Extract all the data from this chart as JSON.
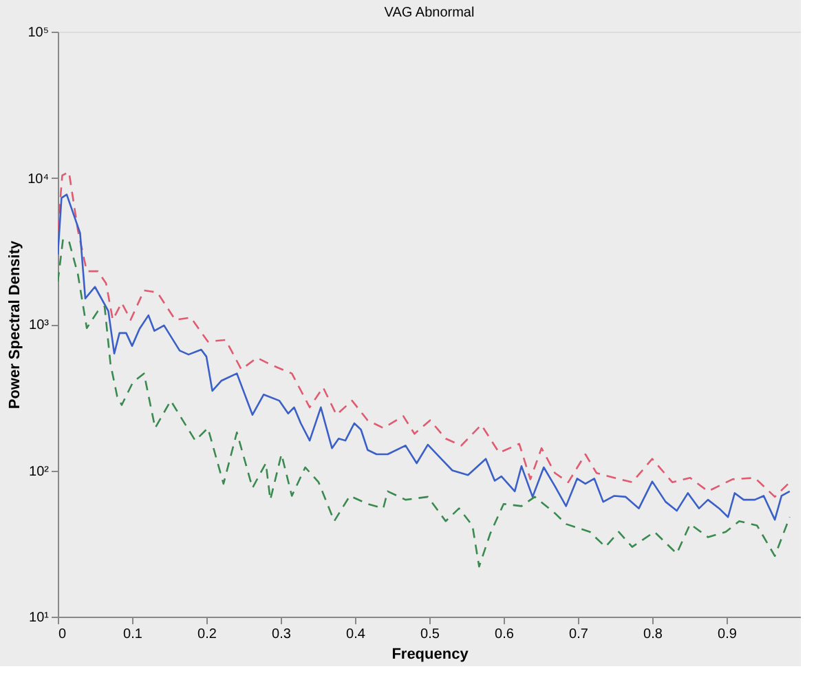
{
  "chart_data": {
    "type": "line",
    "title": "VAG Abnormal",
    "xlabel": "Frequency",
    "ylabel": "Power Spectral Density",
    "log": "y",
    "grid": false,
    "marker": "none",
    "xlim": [
      0,
      1
    ],
    "xticks": [
      0,
      0.1,
      0.2,
      0.3,
      0.4,
      0.5,
      0.6,
      0.7,
      0.8,
      0.9
    ],
    "ylim": [
      10,
      100000
    ],
    "yticks": [
      {
        "value": 10,
        "label": "10¹"
      },
      {
        "value": 100,
        "label": "10²"
      },
      {
        "value": 1000,
        "label": "10³"
      },
      {
        "value": 10000,
        "label": "10⁴"
      },
      {
        "value": 100000,
        "label": "10⁵"
      }
    ],
    "series": [
      {
        "color": "#e05a70",
        "line_style": "dashed",
        "x": [
          0,
          0.006,
          0.015,
          0.027,
          0.039,
          0.054,
          0.065,
          0.074,
          0.086,
          0.098,
          0.116,
          0.134,
          0.158,
          0.179,
          0.202,
          0.226,
          0.247,
          0.268,
          0.286,
          0.315,
          0.339,
          0.357,
          0.375,
          0.396,
          0.417,
          0.438,
          0.465,
          0.48,
          0.501,
          0.522,
          0.543,
          0.57,
          0.594,
          0.621,
          0.636,
          0.651,
          0.669,
          0.687,
          0.71,
          0.725,
          0.749,
          0.773,
          0.8,
          0.827,
          0.851,
          0.875,
          0.908,
          0.938,
          0.965,
          0.985
        ],
        "values": [
          4400,
          10400,
          11000,
          4400,
          2300,
          2300,
          1900,
          1070,
          1400,
          1070,
          1700,
          1650,
          1070,
          1110,
          760,
          780,
          490,
          590,
          530,
          460,
          270,
          370,
          240,
          300,
          220,
          195,
          235,
          178,
          220,
          165,
          148,
          205,
          132,
          152,
          87,
          142,
          96,
          83,
          129,
          96,
          89,
          83,
          120,
          83,
          89,
          72,
          87,
          89,
          66,
          83
        ]
      },
      {
        "color": "#3a5fc8",
        "line_style": "solid",
        "x": [
          0,
          0.005,
          0.012,
          0.03,
          0.037,
          0.05,
          0.068,
          0.076,
          0.083,
          0.092,
          0.1,
          0.11,
          0.122,
          0.13,
          0.143,
          0.164,
          0.176,
          0.193,
          0.2,
          0.208,
          0.22,
          0.241,
          0.262,
          0.277,
          0.298,
          0.31,
          0.318,
          0.327,
          0.339,
          0.354,
          0.369,
          0.378,
          0.387,
          0.399,
          0.408,
          0.417,
          0.429,
          0.444,
          0.468,
          0.483,
          0.498,
          0.516,
          0.531,
          0.552,
          0.576,
          0.588,
          0.597,
          0.615,
          0.624,
          0.639,
          0.654,
          0.669,
          0.684,
          0.699,
          0.71,
          0.722,
          0.734,
          0.749,
          0.764,
          0.782,
          0.8,
          0.818,
          0.833,
          0.848,
          0.863,
          0.875,
          0.89,
          0.902,
          0.911,
          0.923,
          0.938,
          0.95,
          0.965,
          0.974,
          0.985
        ],
        "values": [
          3000,
          7300,
          7700,
          4200,
          1500,
          1800,
          1230,
          630,
          870,
          870,
          710,
          930,
          1150,
          900,
          980,
          660,
          620,
          670,
          600,
          350,
          410,
          460,
          240,
          330,
          300,
          245,
          270,
          210,
          160,
          270,
          142,
          165,
          160,
          210,
          190,
          138,
          129,
          129,
          148,
          112,
          150,
          120,
          100,
          93,
          120,
          85,
          91,
          72,
          107,
          66,
          105,
          78,
          57,
          88,
          81,
          88,
          61,
          67,
          66,
          55,
          84,
          61,
          53,
          70,
          55,
          63,
          55,
          48,
          70,
          63,
          63,
          67,
          46,
          67,
          72
        ]
      },
      {
        "color": "#3a8a50",
        "line_style": "dashed",
        "x": [
          0,
          0.007,
          0.015,
          0.027,
          0.039,
          0.054,
          0.063,
          0.071,
          0.08,
          0.086,
          0.101,
          0.116,
          0.131,
          0.152,
          0.167,
          0.185,
          0.202,
          0.223,
          0.241,
          0.262,
          0.28,
          0.286,
          0.301,
          0.315,
          0.333,
          0.351,
          0.372,
          0.393,
          0.417,
          0.438,
          0.444,
          0.468,
          0.498,
          0.522,
          0.54,
          0.558,
          0.567,
          0.582,
          0.6,
          0.624,
          0.642,
          0.669,
          0.684,
          0.716,
          0.737,
          0.755,
          0.773,
          0.803,
          0.833,
          0.851,
          0.875,
          0.899,
          0.917,
          0.941,
          0.965,
          0.985
        ],
        "values": [
          1950,
          3800,
          3700,
          2200,
          940,
          1230,
          1320,
          530,
          320,
          280,
          400,
          460,
          195,
          300,
          225,
          160,
          195,
          81,
          182,
          76,
          112,
          63,
          129,
          67,
          105,
          83,
          45,
          67,
          59,
          55,
          72,
          63,
          66,
          45,
          55,
          42,
          22,
          37,
          59,
          57,
          66,
          51,
          43,
          38,
          30,
          38,
          30,
          38,
          27,
          43,
          35,
          38,
          45,
          42,
          26,
          48
        ]
      }
    ]
  }
}
